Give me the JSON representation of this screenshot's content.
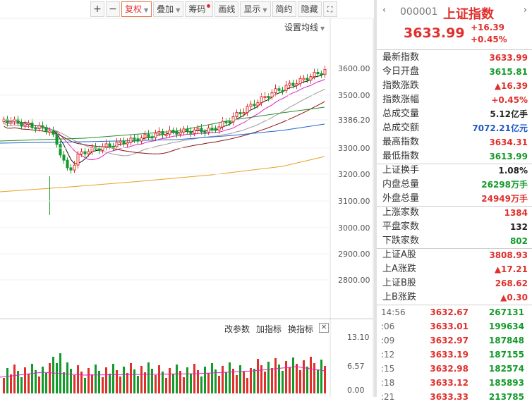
{
  "toolbar": {
    "plus": "+",
    "minus": "−",
    "fuquan": "复权",
    "diejia": "叠加",
    "chouma": "筹码",
    "huaxian": "画线",
    "xianshi": "显示",
    "jianyue": "简约",
    "yincang": "隐藏"
  },
  "chart": {
    "set_ma_label": "设置均线",
    "price_ticks": [
      "3600.00",
      "3500.00",
      "3386.20",
      "3300.00",
      "3200.00",
      "3100.00",
      "3000.00",
      "2900.00",
      "2800.00"
    ],
    "volume_ticks": [
      "13.10",
      "6.57",
      "0.00"
    ],
    "indicator_buttons": [
      "改参数",
      "加指标",
      "换指标"
    ],
    "colors": {
      "up": "#e0302c",
      "down": "#129a2a",
      "ma5": "#111111",
      "ma10": "#e020c0",
      "ma20": "#999999",
      "ma30": "#8b1010",
      "ma60": "#2a8a2a",
      "ma120": "#1f66c9",
      "ma250": "#e8a020"
    }
  },
  "info": {
    "code": "000001",
    "name": "上证指数",
    "price": "3633.99",
    "change": "+16.39",
    "change_pct": "+0.45%",
    "stats": [
      {
        "label": "最新指数",
        "value": "3633.99",
        "color": "red"
      },
      {
        "label": "今日开盘",
        "value": "3615.81",
        "color": "green"
      },
      {
        "label": "指数涨跌",
        "value": "▲16.39",
        "color": "red"
      },
      {
        "label": "指数涨幅",
        "value": "+0.45%",
        "color": "red"
      },
      {
        "label": "总成交量",
        "value": "5.12亿手",
        "color": "black"
      },
      {
        "label": "总成交额",
        "value": "7072.21亿元",
        "color": "blue"
      },
      {
        "label": "最高指数",
        "value": "3634.31",
        "color": "red"
      },
      {
        "label": "最低指数",
        "value": "3613.99",
        "color": "green"
      }
    ],
    "stats2": [
      {
        "label": "上证换手",
        "value": "1.08%",
        "color": "black"
      },
      {
        "label": "内盘总量",
        "value": "26298万手",
        "color": "green"
      },
      {
        "label": "外盘总量",
        "value": "24949万手",
        "color": "red"
      }
    ],
    "stats3": [
      {
        "label": "上涨家数",
        "value": "1384",
        "color": "red"
      },
      {
        "label": "平盘家数",
        "value": "132",
        "color": "black"
      },
      {
        "label": "下跌家数",
        "value": "802",
        "color": "green"
      }
    ],
    "stats4": [
      {
        "label": "上证A股",
        "value": "3808.93",
        "color": "red"
      },
      {
        "label": "上A涨跌",
        "value": "▲17.21",
        "color": "red"
      },
      {
        "label": "上证B股",
        "value": "268.62",
        "color": "red"
      },
      {
        "label": "上B涨跌",
        "value": "▲0.30",
        "color": "red"
      }
    ],
    "ticks": [
      {
        "time": "14:56",
        "price": "3632.67",
        "vol": "267131"
      },
      {
        "time": ":06",
        "price": "3633.01",
        "vol": "199634"
      },
      {
        "time": ":09",
        "price": "3632.97",
        "vol": "187848"
      },
      {
        "time": ":12",
        "price": "3633.19",
        "vol": "187155"
      },
      {
        "time": ":15",
        "price": "3632.98",
        "vol": "182574"
      },
      {
        "time": ":18",
        "price": "3633.12",
        "vol": "185893"
      },
      {
        "time": ":21",
        "price": "3633.33",
        "vol": "213785"
      }
    ]
  }
}
